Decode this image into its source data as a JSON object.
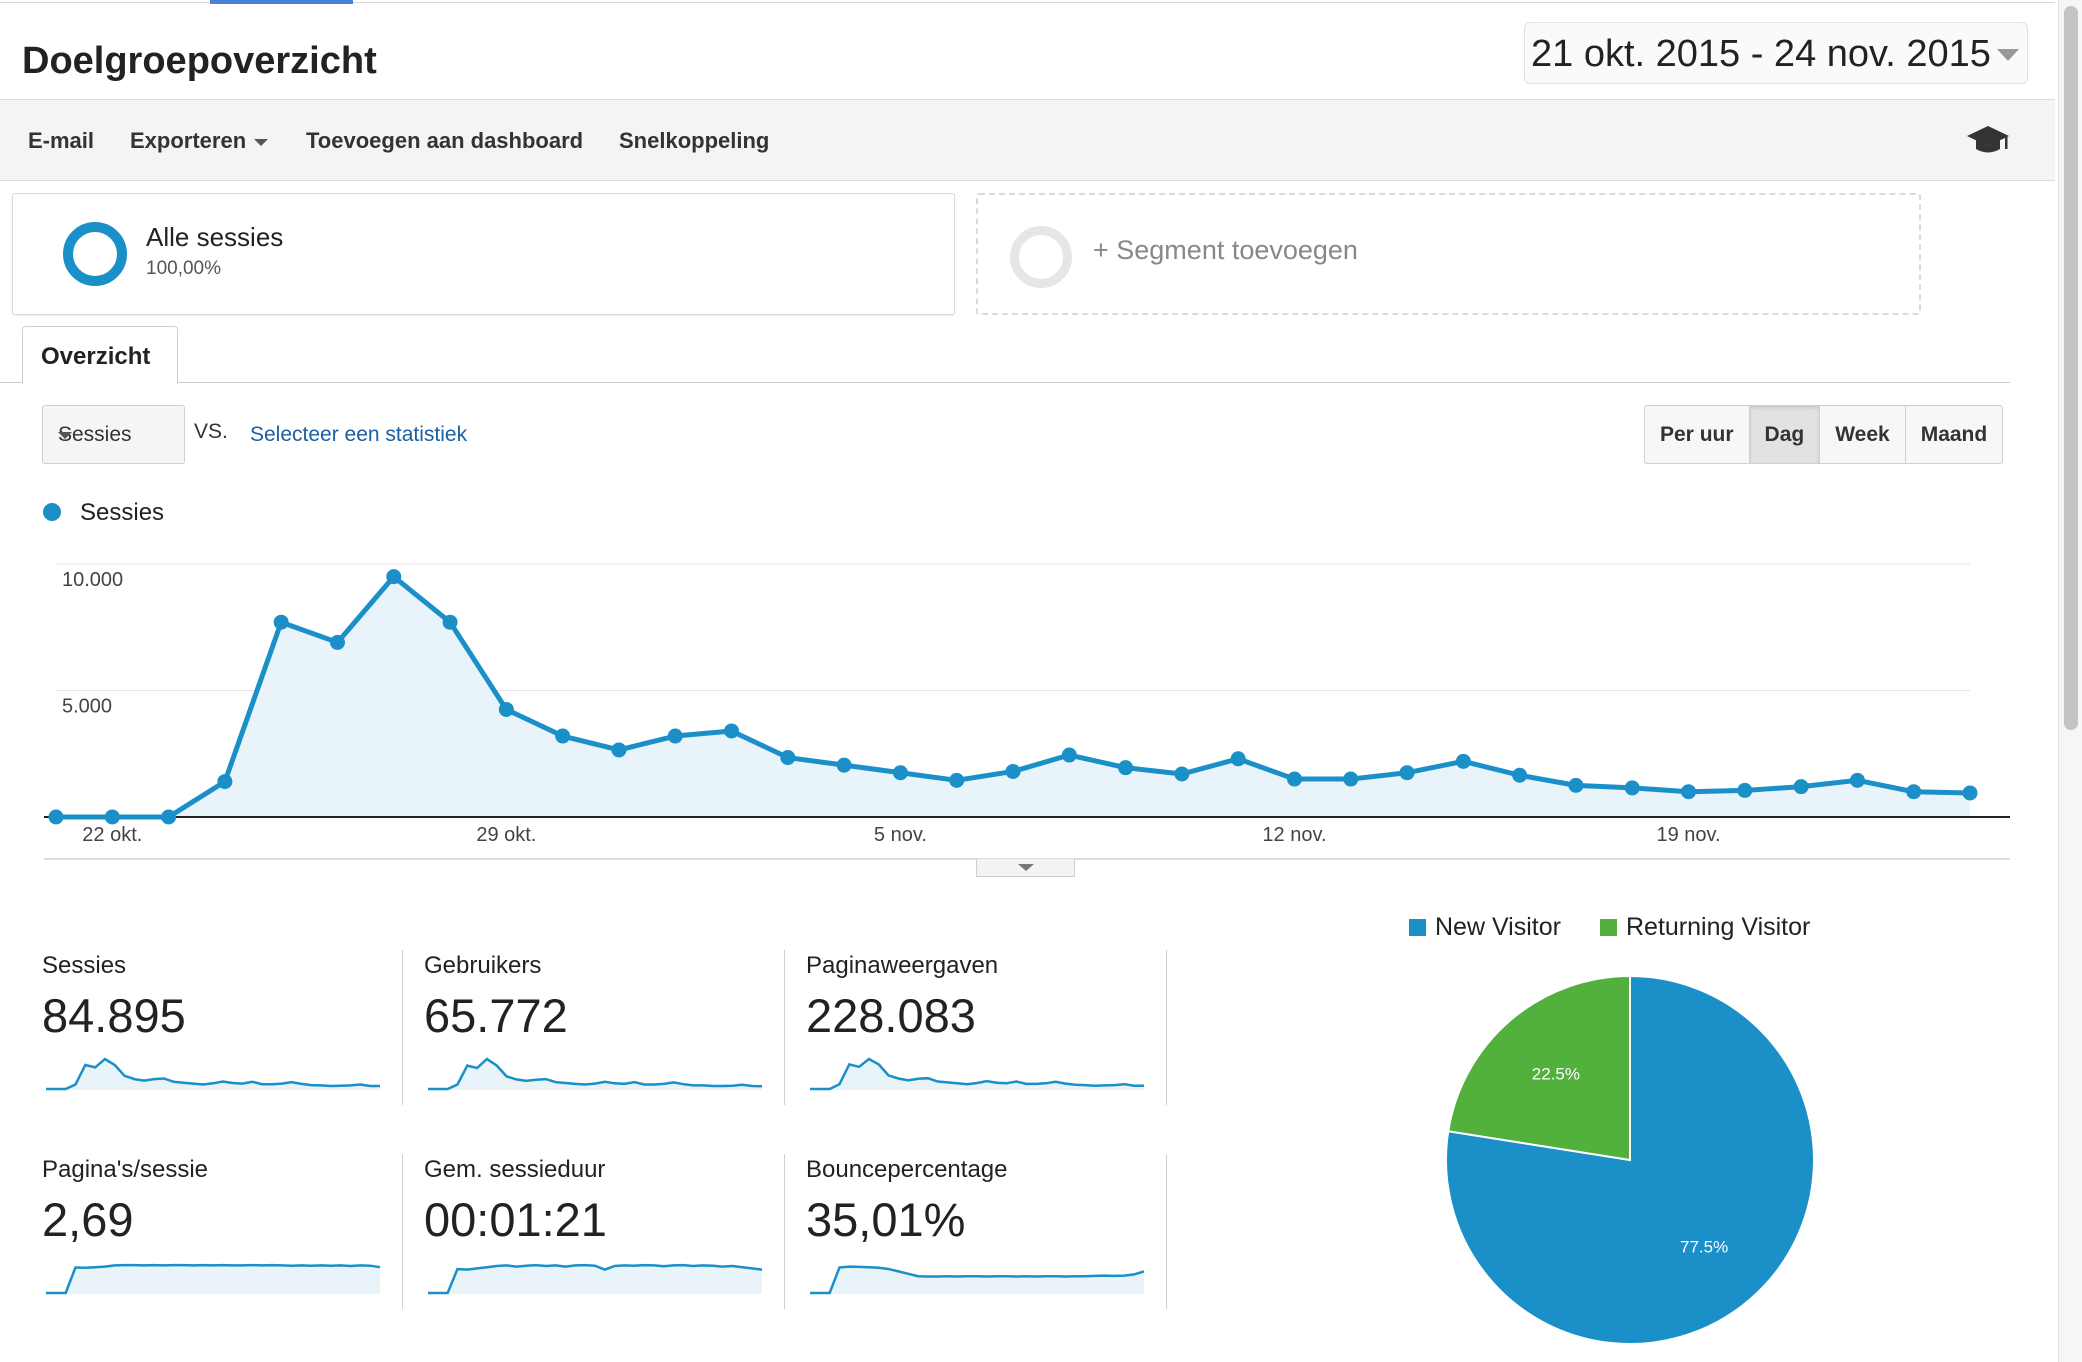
{
  "header": {
    "title": "Doelgroepoverzicht",
    "date_range": "21 okt. 2015 - 24 nov. 2015"
  },
  "toolbar": {
    "email": "E-mail",
    "export": "Exporteren",
    "add_to_dashboard": "Toevoegen aan dashboard",
    "shortcut": "Snelkoppeling",
    "academy_icon": "graduation-cap-icon"
  },
  "segments": {
    "all": {
      "name": "Alle sessies",
      "percent": "100,00%"
    },
    "add_label": "+ Segment toevoegen"
  },
  "tabs": [
    {
      "label": "Overzicht"
    }
  ],
  "controls": {
    "metric": "Sessies",
    "vs": "VS.",
    "select_stat": "Selecteer een statistiek",
    "intervals": [
      {
        "label": "Per uur",
        "active": false
      },
      {
        "label": "Dag",
        "active": true
      },
      {
        "label": "Week",
        "active": false
      },
      {
        "label": "Maand",
        "active": false
      }
    ]
  },
  "colors": {
    "series": "#1b8fc8",
    "fill": "#e8f3fa",
    "new_visitor": "#1b8fc8",
    "returning_visitor": "#52b03d"
  },
  "chart_data": [
    {
      "type": "line",
      "legend": [
        "Sessies"
      ],
      "x": [
        "21 okt.",
        "22 okt.",
        "23 okt.",
        "24 okt.",
        "25 okt.",
        "26 okt.",
        "27 okt.",
        "28 okt.",
        "29 okt.",
        "30 okt.",
        "31 okt.",
        "1 nov.",
        "2 nov.",
        "3 nov.",
        "4 nov.",
        "5 nov.",
        "6 nov.",
        "7 nov.",
        "8 nov.",
        "9 nov.",
        "10 nov.",
        "11 nov.",
        "12 nov.",
        "13 nov.",
        "14 nov.",
        "15 nov.",
        "16 nov.",
        "17 nov.",
        "18 nov.",
        "19 nov.",
        "20 nov.",
        "21 nov.",
        "22 nov.",
        "23 nov.",
        "24 nov."
      ],
      "series": [
        {
          "name": "Sessies",
          "values": [
            0,
            0,
            0,
            1400,
            7700,
            6900,
            9500,
            7700,
            4250,
            3200,
            2650,
            3200,
            3400,
            2350,
            2050,
            1750,
            1450,
            1800,
            2450,
            1950,
            1700,
            2300,
            1500,
            1500,
            1750,
            2200,
            1650,
            1250,
            1150,
            1000,
            1050,
            1200,
            1450,
            1000,
            950
          ]
        }
      ],
      "x_ticks": [
        "22 okt.",
        "29 okt.",
        "5 nov.",
        "12 nov.",
        "19 nov."
      ],
      "y_ticks": [
        {
          "value": 10000,
          "label": "10.000"
        },
        {
          "value": 5000,
          "label": "5.000"
        }
      ],
      "ylim": [
        0,
        10000
      ],
      "grid": true
    },
    {
      "type": "pie",
      "categories": [
        "New Visitor",
        "Returning Visitor"
      ],
      "values": [
        77.5,
        22.5
      ],
      "data_labels": [
        "77.5%",
        "22.5%"
      ],
      "legend_position": "top"
    }
  ],
  "scorecards": [
    {
      "label": "Sessies",
      "value": "84.895",
      "spark": [
        0,
        0,
        0,
        15,
        80,
        72,
        100,
        80,
        44,
        33,
        28,
        33,
        35,
        24,
        21,
        18,
        15,
        19,
        25,
        20,
        18,
        24,
        16,
        16,
        18,
        23,
        17,
        13,
        12,
        10,
        11,
        12,
        15,
        10,
        10
      ]
    },
    {
      "label": "Gebruikers",
      "value": "65.772",
      "spark": [
        0,
        0,
        0,
        15,
        78,
        70,
        100,
        78,
        42,
        32,
        27,
        31,
        33,
        23,
        20,
        17,
        15,
        18,
        24,
        19,
        17,
        23,
        15,
        15,
        17,
        22,
        16,
        12,
        12,
        10,
        10,
        11,
        14,
        10,
        9
      ]
    },
    {
      "label": "Paginaweergaven",
      "value": "228.083",
      "spark": [
        0,
        0,
        0,
        16,
        82,
        74,
        100,
        82,
        45,
        35,
        29,
        34,
        36,
        25,
        22,
        19,
        16,
        20,
        26,
        21,
        19,
        25,
        17,
        17,
        19,
        24,
        18,
        14,
        13,
        11,
        12,
        13,
        16,
        11,
        11
      ]
    },
    {
      "label": "Pagina's/sessie",
      "value": "2,69",
      "spark": [
        0,
        0,
        0,
        85,
        84,
        86,
        88,
        92,
        93,
        93,
        92,
        93,
        92,
        93,
        93,
        92,
        93,
        92,
        93,
        92,
        92,
        93,
        92,
        93,
        92,
        91,
        92,
        91,
        92,
        91,
        92,
        90,
        92,
        91,
        86
      ]
    },
    {
      "label": "Gem. sessieduur",
      "value": "00:01:21",
      "spark": [
        0,
        0,
        0,
        80,
        78,
        82,
        86,
        90,
        92,
        88,
        91,
        93,
        90,
        92,
        88,
        92,
        93,
        91,
        78,
        90,
        92,
        91,
        93,
        92,
        89,
        92,
        93,
        90,
        92,
        91,
        88,
        90,
        86,
        82,
        78
      ]
    },
    {
      "label": "Bouncepercentage",
      "value": "35,01%",
      "spark": [
        0,
        0,
        0,
        85,
        88,
        87,
        86,
        84,
        80,
        72,
        64,
        56,
        55,
        55,
        56,
        55,
        56,
        56,
        55,
        56,
        56,
        55,
        56,
        55,
        56,
        56,
        55,
        56,
        56,
        57,
        58,
        57,
        58,
        62,
        72
      ]
    }
  ]
}
